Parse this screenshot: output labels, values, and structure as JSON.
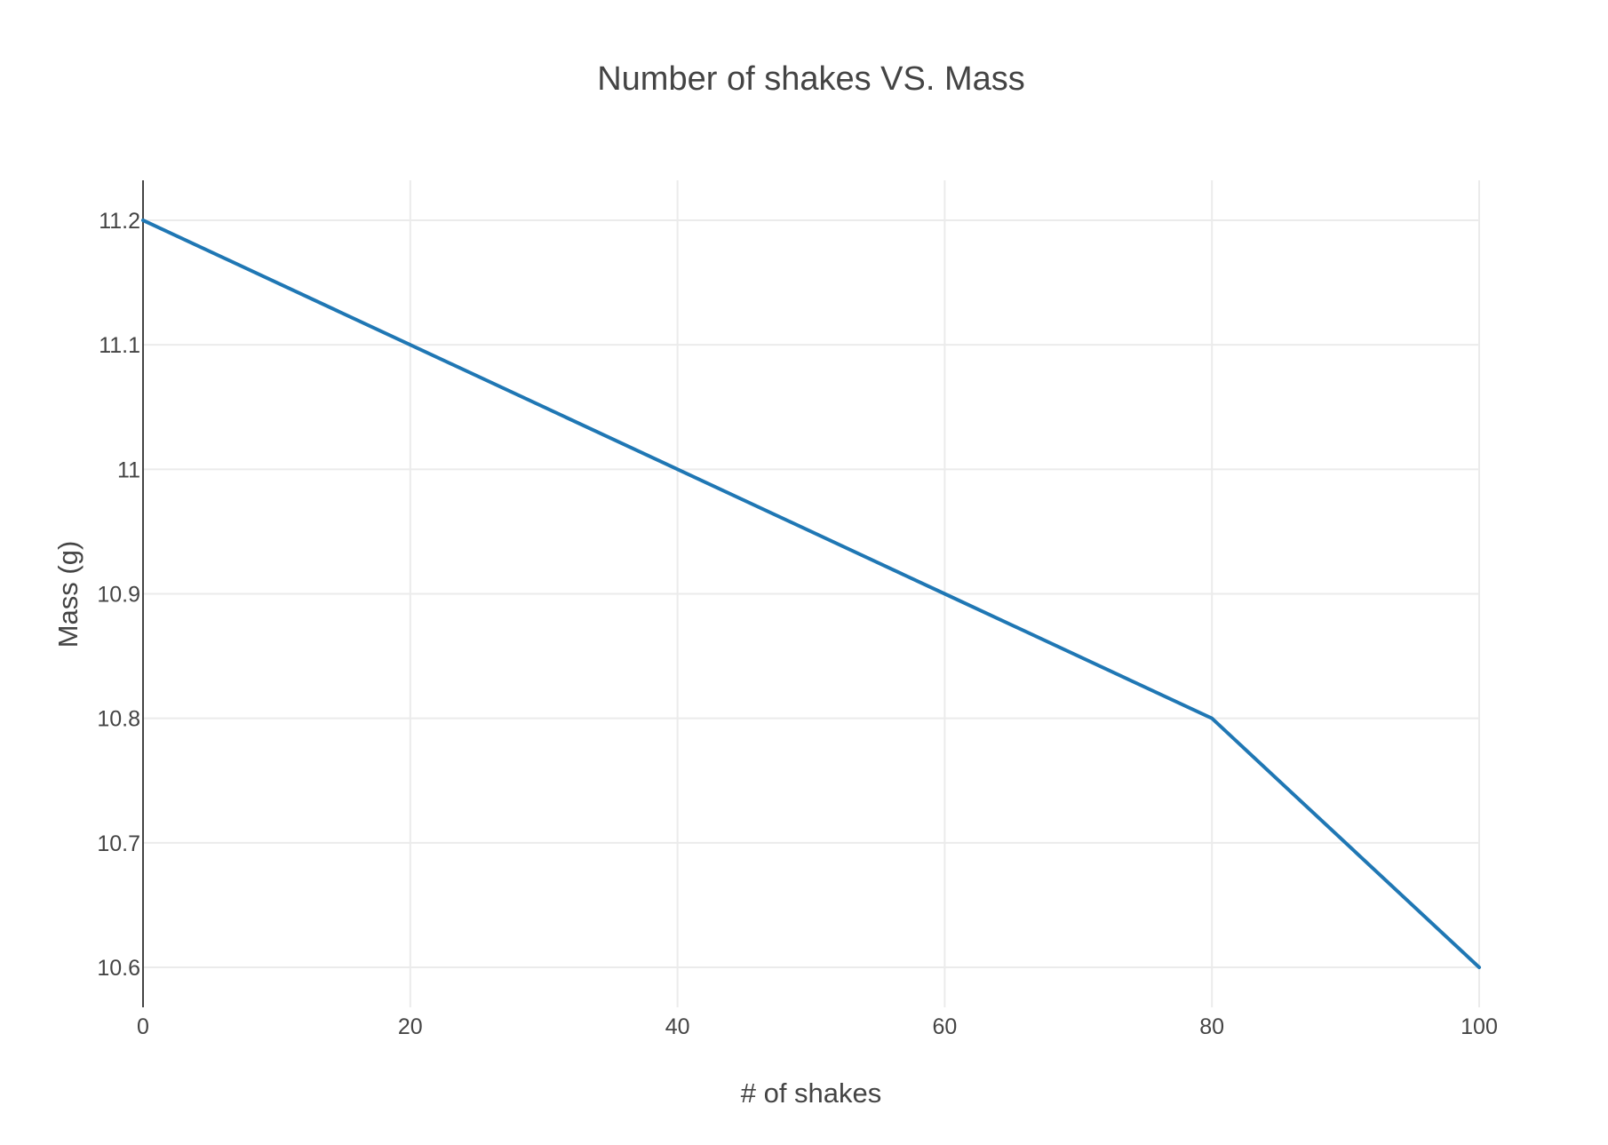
{
  "chart_data": {
    "type": "line",
    "title": "Number of shakes VS. Mass",
    "xlabel": "# of shakes",
    "ylabel": "Mass (g)",
    "x": [
      0,
      20,
      40,
      60,
      80,
      100
    ],
    "series": [
      {
        "values": [
          11.2,
          11.1,
          11.0,
          10.9,
          10.8,
          10.6
        ],
        "color": "#1f77b4"
      }
    ],
    "xlim": [
      0,
      100
    ],
    "ylim": [
      10.6,
      11.2
    ],
    "x_ticks": [
      0,
      20,
      40,
      60,
      80,
      100
    ],
    "x_tick_labels": [
      "0",
      "20",
      "40",
      "60",
      "80",
      "100"
    ],
    "y_ticks": [
      10.6,
      10.7,
      10.8,
      10.9,
      11.0,
      11.1,
      11.2
    ],
    "y_tick_labels": [
      "10.6",
      "10.7",
      "10.8",
      "10.9",
      "11",
      "11.1",
      "11.2"
    ],
    "grid": true,
    "legend": false
  }
}
